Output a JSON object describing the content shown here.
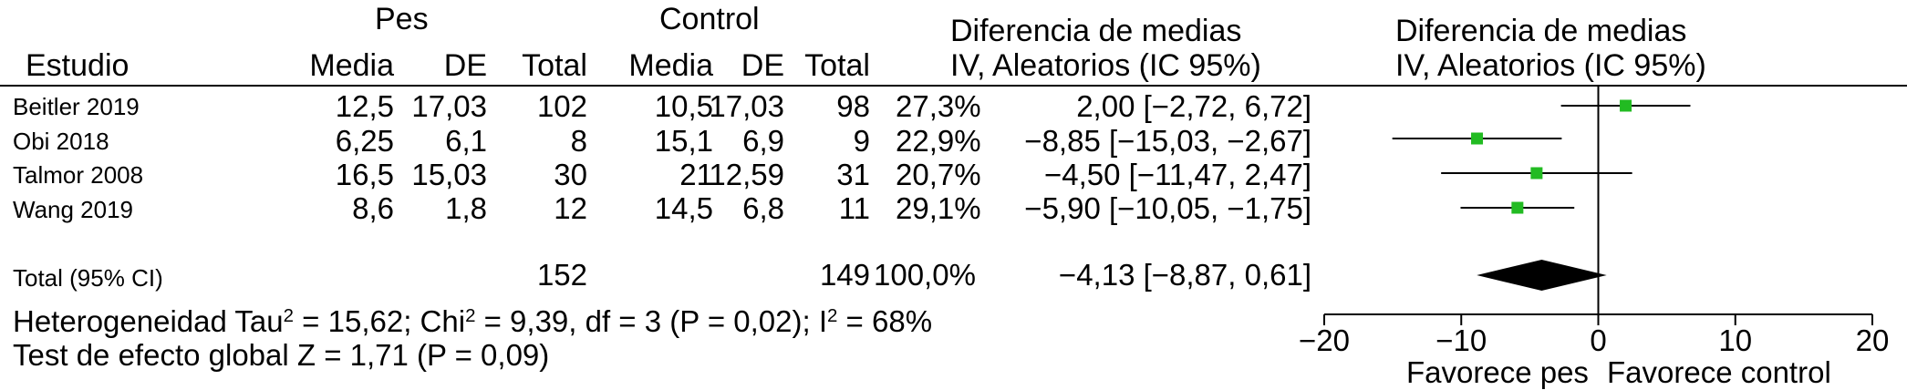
{
  "headers": {
    "group_treatment": "Pes",
    "group_control": "Control",
    "study": "Estudio",
    "mean": "Media",
    "sd": "DE",
    "total": "Total",
    "weight_header_line1": "Diferencia de medias",
    "weight_header_line2": "IV, Aleatorios (IC 95%)",
    "plot_header_line1": "Diferencia de medias",
    "plot_header_line2": "IV, Aleatorios (IC 95%)"
  },
  "studies": [
    {
      "name": "Beitler 2019",
      "t_mean": "12,5",
      "t_sd": "17,03",
      "t_total": "102",
      "c_mean": "10,5",
      "c_sd": "17,03",
      "c_total": "98",
      "weight": "27,3%",
      "ci_text": "2,00 [−2,72, 6,72]"
    },
    {
      "name": "Obi 2018",
      "t_mean": "6,25",
      "t_sd": "6,1",
      "t_total": "8",
      "c_mean": "15,1",
      "c_sd": "6,9",
      "c_total": "9",
      "weight": "22,9%",
      "ci_text": "−8,85 [−15,03, −2,67]"
    },
    {
      "name": "Talmor 2008",
      "t_mean": "16,5",
      "t_sd": "15,03",
      "t_total": "30",
      "c_mean": "21",
      "c_sd": "12,59",
      "c_total": "31",
      "weight": "20,7%",
      "ci_text": "−4,50 [−11,47, 2,47]"
    },
    {
      "name": "Wang 2019",
      "t_mean": "8,6",
      "t_sd": "1,8",
      "t_total": "12",
      "c_mean": "14,5",
      "c_sd": "6,8",
      "c_total": "11",
      "weight": "29,1%",
      "ci_text": "−5,90 [−10,05, −1,75]"
    }
  ],
  "total": {
    "label": "Total (95% CI)",
    "t_total": "152",
    "c_total": "149",
    "weight": "100,0%",
    "ci_text": "−4,13 [−8,87, 0,61]"
  },
  "heterogeneity": {
    "prefix": "Heterogeneidad Tau",
    "sup1": "2",
    "mid1": " = 15,62; Chi",
    "sup2": "2",
    "mid2": " = 9,39, df = 3 (P = 0,02); I",
    "sup3": "2",
    "suffix": " = 68%"
  },
  "overall_effect": "Test de efecto global Z = 1,71 (P = 0,09)",
  "favours_left": "Favorece pes",
  "favours_right": "Favorece control",
  "colors": {
    "marker": "#22bb22",
    "diamond": "#000000",
    "line": "#000000"
  },
  "chart_data": {
    "type": "forest",
    "xlim": [
      -20,
      20
    ],
    "xticks": [
      -20,
      -10,
      0,
      10,
      20
    ],
    "xtick_labels": [
      "−20",
      "−10",
      "0",
      "10",
      "20"
    ],
    "studies": [
      {
        "name": "Beitler 2019",
        "estimate": 2.0,
        "lower": -2.72,
        "upper": 6.72,
        "weight": 27.3
      },
      {
        "name": "Obi 2018",
        "estimate": -8.85,
        "lower": -15.03,
        "upper": -2.67,
        "weight": 22.9
      },
      {
        "name": "Talmor 2008",
        "estimate": -4.5,
        "lower": -11.47,
        "upper": 2.47,
        "weight": 20.7
      },
      {
        "name": "Wang 2019",
        "estimate": -5.9,
        "lower": -10.05,
        "upper": -1.75,
        "weight": 29.1
      }
    ],
    "pooled": {
      "estimate": -4.13,
      "lower": -8.87,
      "upper": 0.61
    }
  }
}
